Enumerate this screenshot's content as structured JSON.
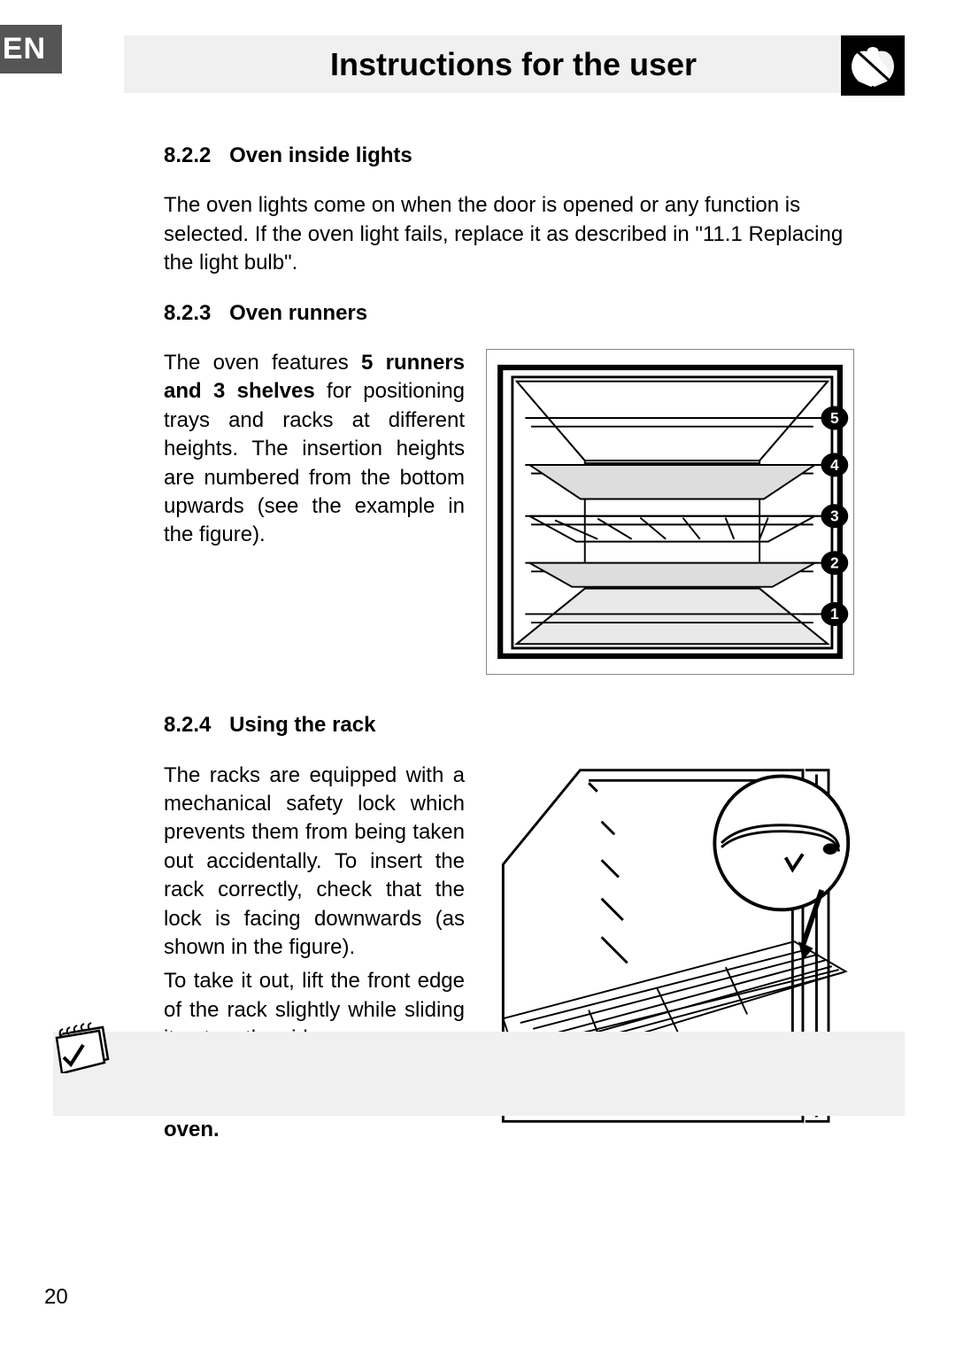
{
  "header": {
    "lang_badge": "EN",
    "title": "Instructions for the user"
  },
  "sections": {
    "s822": {
      "number": "8.2.2",
      "title": "Oven inside lights",
      "body": "The oven lights come on when the door is opened or any function is selected. If the oven light fails, replace it as described in \"11.1 Replacing the light bulb\"."
    },
    "s823": {
      "number": "8.2.3",
      "title": "Oven runners",
      "body_pre": "The oven features ",
      "body_bold": "5 runners and 3 shelves",
      "body_post": " for positioning trays and racks at different heights. The insertion heights are numbered from the bottom upwards (see the example in the figure).",
      "runner_labels": [
        "5",
        "4",
        "3",
        "2",
        "1"
      ],
      "figure": {
        "type": "diagram",
        "label_bg": "#000000",
        "label_fg": "#ffffff",
        "line_color": "#000000",
        "bg": "#ffffff"
      }
    },
    "s824": {
      "number": "8.2.4",
      "title": "Using the rack",
      "p1": "The racks are equipped with a mechanical safety lock which prevents them from being taken out accidentally. To insert the rack correctly, check that the lock is facing downwards (as shown in the figure).",
      "p2": "To take it out, lift the front edge of the rack slightly while sliding it out on the side runners.",
      "p3_bold": "The mechanical lock must always face the back of the oven.",
      "figure": {
        "type": "diagram",
        "line_color": "#000000",
        "bg": "#ffffff"
      }
    }
  },
  "page_number": "20",
  "colors": {
    "header_bg": "#f0f0f0",
    "badge_bg": "#555555",
    "badge_fg": "#ffffff",
    "text": "#000000",
    "page_bg": "#ffffff"
  },
  "typography": {
    "title_fontsize_pt": 27,
    "heading_fontsize_pt": 18,
    "body_fontsize_pt": 18,
    "font_family": "Arial"
  }
}
